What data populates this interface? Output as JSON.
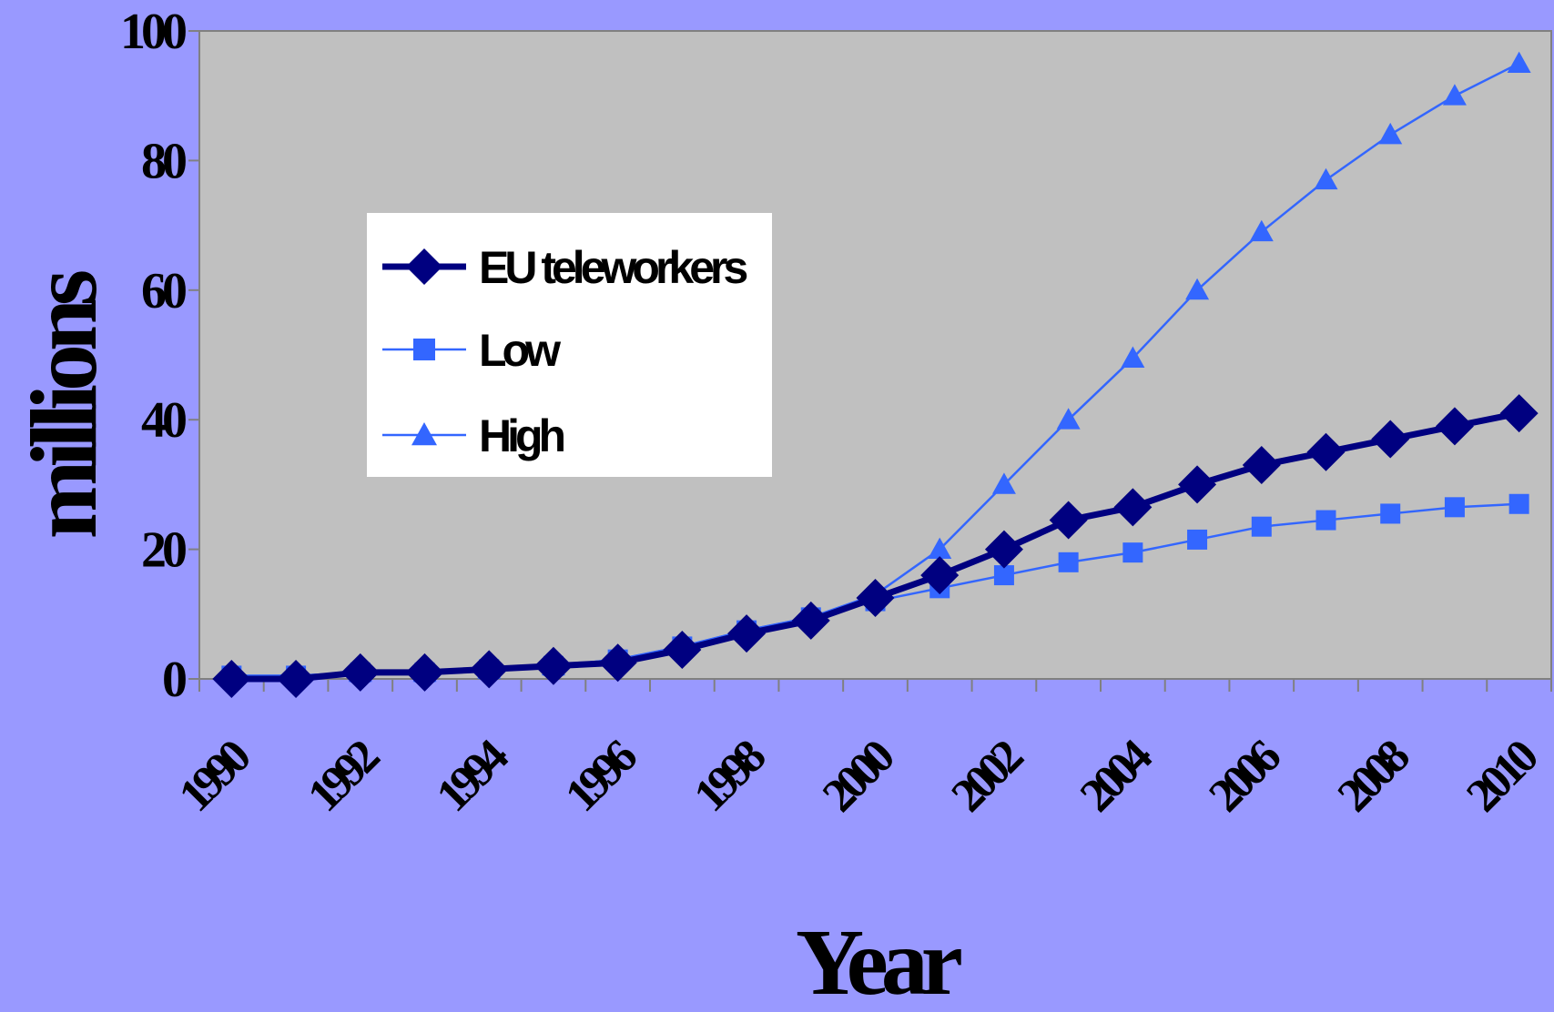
{
  "chart_data": {
    "type": "line",
    "title": "",
    "xlabel": "Year",
    "ylabel": "millions",
    "ylim": [
      0,
      100
    ],
    "yticks": [
      0,
      20,
      40,
      60,
      80,
      100
    ],
    "ytick_labels": [
      "0",
      "20",
      "40",
      "60",
      "80",
      "100"
    ],
    "categories": [
      "1990",
      "1991",
      "1992",
      "1993",
      "1994",
      "1995",
      "1996",
      "1997",
      "1998",
      "1999",
      "2000",
      "2001",
      "2002",
      "2003",
      "2004",
      "2005",
      "2006",
      "2007",
      "2008",
      "2009",
      "2010"
    ],
    "xtick_labels": [
      "1990",
      "1992",
      "1994",
      "1996",
      "1998",
      "2000",
      "2002",
      "2004",
      "2006",
      "2008",
      "2010"
    ],
    "grid": false,
    "legend_position": "upper-left-inside",
    "series": [
      {
        "name": "EU teleworkers",
        "color": "#000080",
        "marker": "diamond",
        "values": [
          0,
          0,
          1,
          1,
          1.5,
          2,
          2.5,
          4.5,
          7,
          9,
          12.5,
          16,
          20,
          24.5,
          26.5,
          30,
          33,
          35,
          37,
          39,
          41
        ]
      },
      {
        "name": "Low",
        "color": "#3366ff",
        "marker": "square",
        "values": [
          0.5,
          0.5,
          1,
          1,
          1.5,
          2,
          3,
          5,
          7.5,
          9.5,
          12,
          14,
          16,
          18,
          19.5,
          21.5,
          23.5,
          24.5,
          25.5,
          26.5,
          27
        ]
      },
      {
        "name": "High",
        "color": "#3366ff",
        "marker": "triangle",
        "values": [
          0.5,
          0.5,
          1,
          1,
          1.5,
          2,
          3,
          5,
          7.5,
          9.5,
          13,
          20,
          30,
          40,
          49.5,
          60,
          69,
          77,
          84,
          90,
          95
        ]
      }
    ]
  },
  "colors": {
    "background": "#9999ff",
    "plot_area": "#c0c0c0",
    "legend_bg": "#ffffff",
    "axis": "#808080"
  }
}
